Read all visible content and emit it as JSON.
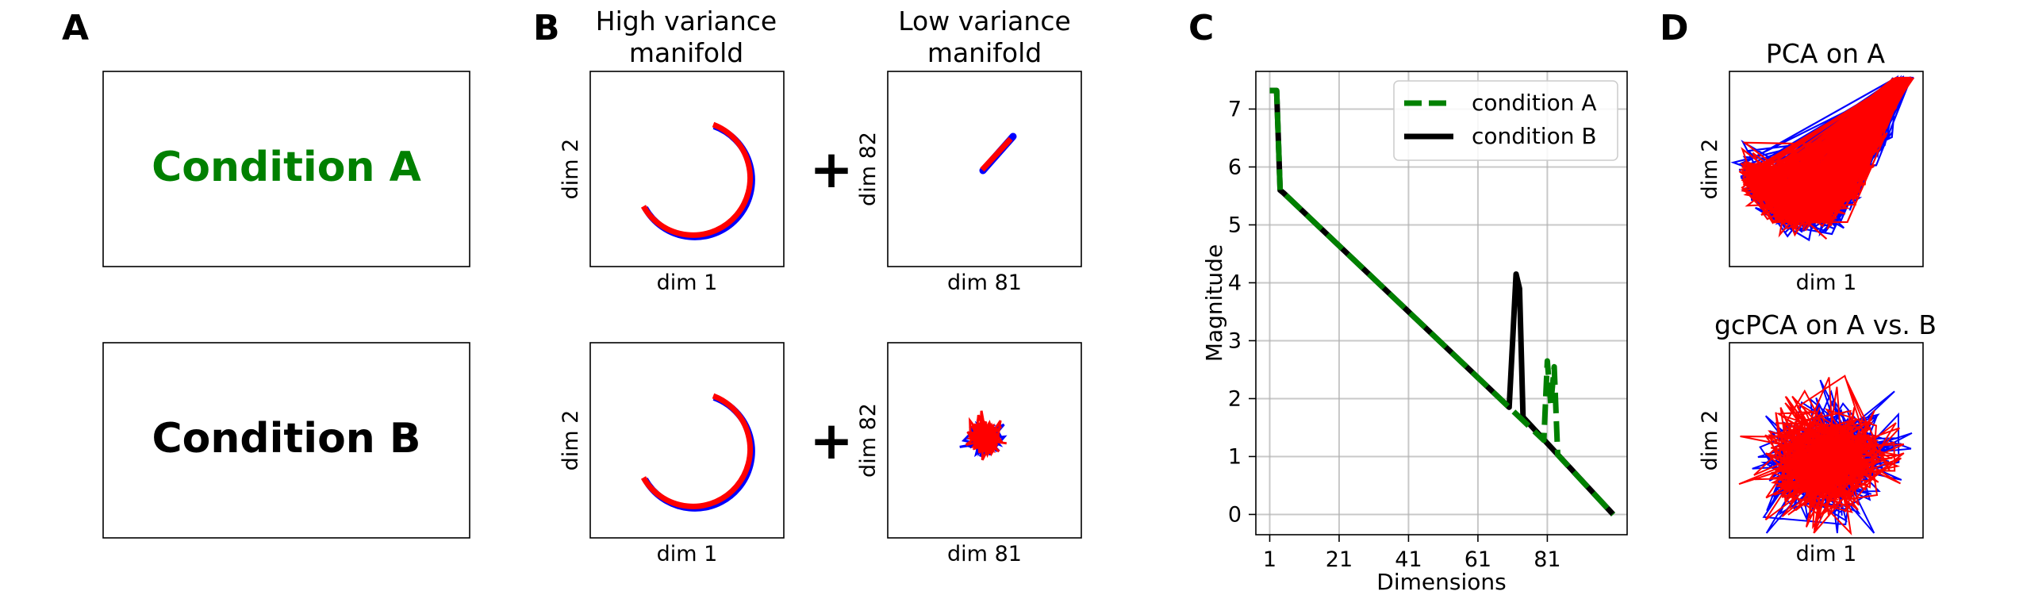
{
  "panel_letters": {
    "a": "A",
    "b": "B",
    "c": "C",
    "d": "D"
  },
  "panel_a": {
    "box_top_label": "Condition A",
    "box_top_color": "#008000",
    "box_bottom_label": "Condition B",
    "box_bottom_color": "#000000"
  },
  "panel_b": {
    "col1_title_line1": "High variance",
    "col1_title_line2": "manifold",
    "col2_title_line1": "Low variance",
    "col2_title_line2": "manifold",
    "plus": "+",
    "hv_xlabel": "dim 1",
    "hv_ylabel": "dim 2",
    "lv_xlabel": "dim 81",
    "lv_ylabel": "dim 82",
    "color_a": "#ff0000",
    "color_b": "#0000ff"
  },
  "panel_d": {
    "top_title": "PCA on A",
    "bottom_title": "gcPCA on A vs. B",
    "xlabel": "dim 1",
    "ylabel": "dim 2",
    "color_a": "#ff0000",
    "color_b": "#0000ff"
  },
  "chart_data": {
    "type": "line",
    "xlabel": "Dimensions",
    "ylabel": "Magnitude",
    "xlim": [
      -3,
      104
    ],
    "ylim": [
      -0.35,
      7.65
    ],
    "xticks": [
      1,
      21,
      41,
      61,
      81
    ],
    "yticks": [
      0,
      1,
      2,
      3,
      4,
      5,
      6,
      7
    ],
    "grid": true,
    "legend_position": "top-right",
    "series": [
      {
        "name": "condition A",
        "color": "#008000",
        "style": "dashed",
        "x": [
          1,
          2,
          3,
          4,
          5,
          80,
          81,
          82,
          83,
          84,
          100
        ],
        "y": [
          7.32,
          7.32,
          7.32,
          5.6,
          5.55,
          1.28,
          2.65,
          1.9,
          2.55,
          1.03,
          0.0
        ]
      },
      {
        "name": "condition B",
        "color": "#000000",
        "style": "solid",
        "x": [
          1,
          2,
          3,
          4,
          5,
          70,
          71,
          72,
          73,
          74,
          100
        ],
        "y": [
          7.32,
          7.32,
          7.32,
          5.6,
          5.55,
          1.85,
          3.0,
          4.15,
          3.9,
          1.68,
          0.0
        ]
      }
    ]
  }
}
